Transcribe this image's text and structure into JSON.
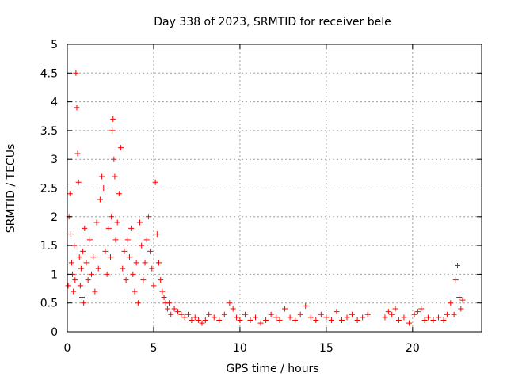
{
  "chart_data": {
    "type": "scatter",
    "title": "Day 338 of 2023, SRMTID for receiver bele",
    "xlabel": "GPS time / hours",
    "ylabel": "SRMTID / TECUs",
    "xlim": [
      0,
      24
    ],
    "ylim": [
      0,
      5
    ],
    "xticks": [
      0,
      5,
      10,
      15,
      20
    ],
    "yticks": [
      0,
      0.5,
      1,
      1.5,
      2,
      2.5,
      3,
      3.5,
      4,
      4.5,
      5
    ],
    "xtick_labels": [
      "0",
      "5",
      "10",
      "15",
      "20"
    ],
    "ytick_labels": [
      "0",
      "0.5",
      "1",
      "1.5",
      "2",
      "2.5",
      "3",
      "3.5",
      "4",
      "4.5",
      "5"
    ],
    "grid": true,
    "marker": "+",
    "color": "#ff0000",
    "series": [
      {
        "name": "SRMTID",
        "x": [
          0.05,
          0.1,
          0.15,
          0.2,
          0.25,
          0.3,
          0.35,
          0.4,
          0.45,
          0.5,
          0.55,
          0.6,
          0.65,
          0.7,
          0.75,
          0.8,
          0.85,
          0.9,
          0.95,
          1.0,
          1.1,
          1.2,
          1.3,
          1.4,
          1.5,
          1.6,
          1.7,
          1.8,
          1.9,
          2.0,
          2.1,
          2.2,
          2.3,
          2.4,
          2.5,
          2.55,
          2.6,
          2.65,
          2.7,
          2.75,
          2.8,
          2.9,
          3.0,
          3.1,
          3.2,
          3.3,
          3.4,
          3.5,
          3.6,
          3.7,
          3.8,
          3.9,
          4.0,
          4.1,
          4.2,
          4.3,
          4.4,
          4.5,
          4.6,
          4.7,
          4.8,
          4.9,
          5.0,
          5.1,
          5.2,
          5.3,
          5.4,
          5.5,
          5.6,
          5.7,
          5.8,
          5.9,
          6.0,
          6.2,
          6.4,
          6.6,
          6.8,
          7.0,
          7.2,
          7.4,
          7.6,
          7.8,
          8.0,
          8.2,
          8.5,
          8.8,
          9.1,
          9.4,
          9.6,
          9.8,
          10.0,
          10.3,
          10.6,
          10.9,
          11.2,
          11.5,
          11.8,
          12.1,
          12.3,
          12.6,
          12.9,
          13.2,
          13.5,
          13.8,
          14.1,
          14.4,
          14.7,
          15.0,
          15.3,
          15.6,
          15.9,
          16.2,
          16.5,
          16.8,
          17.1,
          17.4,
          18.4,
          18.6,
          18.8,
          19.0,
          19.2,
          19.5,
          19.8,
          20.1,
          20.3,
          20.5,
          20.7,
          20.9,
          21.2,
          21.5,
          21.8,
          22.0,
          22.2,
          22.4,
          22.5,
          22.6,
          22.7,
          22.8,
          22.9
        ],
        "values": [
          0.8,
          2.0,
          2.4,
          1.7,
          1.2,
          1.0,
          0.7,
          1.5,
          0.9,
          4.5,
          3.9,
          3.1,
          2.6,
          1.3,
          0.8,
          1.1,
          0.6,
          1.4,
          0.5,
          1.8,
          1.2,
          0.9,
          1.6,
          1.0,
          1.3,
          0.7,
          1.9,
          1.1,
          2.3,
          2.7,
          2.5,
          1.4,
          1.0,
          1.8,
          1.3,
          2.0,
          3.5,
          3.7,
          3.0,
          2.7,
          1.6,
          1.9,
          2.4,
          3.2,
          1.1,
          1.4,
          0.9,
          1.6,
          1.3,
          1.8,
          1.0,
          0.7,
          1.2,
          0.5,
          1.9,
          1.5,
          0.9,
          1.2,
          1.6,
          2.0,
          1.4,
          1.1,
          0.8,
          2.6,
          1.7,
          1.2,
          0.9,
          0.7,
          0.6,
          0.5,
          0.4,
          0.5,
          0.3,
          0.4,
          0.35,
          0.3,
          0.25,
          0.3,
          0.2,
          0.25,
          0.2,
          0.15,
          0.2,
          0.3,
          0.25,
          0.2,
          0.3,
          0.5,
          0.4,
          0.25,
          0.2,
          0.3,
          0.2,
          0.25,
          0.15,
          0.2,
          0.3,
          0.25,
          0.2,
          0.4,
          0.25,
          0.2,
          0.3,
          0.45,
          0.25,
          0.2,
          0.3,
          0.25,
          0.2,
          0.35,
          0.2,
          0.25,
          0.3,
          0.2,
          0.25,
          0.3,
          0.25,
          0.35,
          0.3,
          0.4,
          0.2,
          0.25,
          0.15,
          0.3,
          0.35,
          0.4,
          0.2,
          0.25,
          0.2,
          0.25,
          0.2,
          0.3,
          0.5,
          0.3,
          0.9,
          1.15,
          0.6,
          0.4,
          0.55
        ]
      }
    ]
  }
}
